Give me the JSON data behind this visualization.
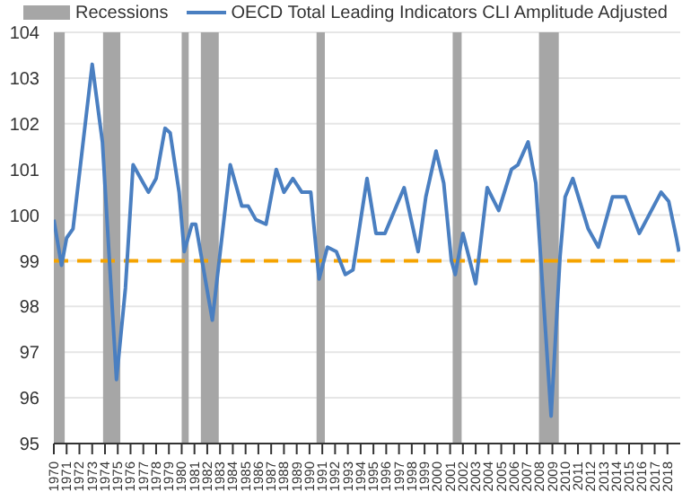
{
  "chart_data": {
    "type": "line",
    "legend": "top",
    "grid": "y",
    "marker": "none",
    "line_style": "solid",
    "xlim": [
      1970,
      2019
    ],
    "xticks": [
      1970,
      1971,
      1972,
      1973,
      1974,
      1975,
      1976,
      1977,
      1978,
      1979,
      1980,
      1981,
      1982,
      1983,
      1984,
      1985,
      1986,
      1987,
      1988,
      1989,
      1990,
      1991,
      1992,
      1993,
      1994,
      1995,
      1996,
      1997,
      1998,
      1999,
      2000,
      2001,
      2002,
      2003,
      2004,
      2005,
      2006,
      2007,
      2008,
      2009,
      2010,
      2011,
      2012,
      2013,
      2014,
      2015,
      2016,
      2017,
      2018
    ],
    "ylim": [
      95,
      104
    ],
    "yticks": [
      95,
      96,
      97,
      98,
      99,
      100,
      101,
      102,
      103,
      104
    ],
    "series": [
      {
        "name": "OECD Total Leading Indicators CLI Amplitude Adjusted",
        "color": "#4a7fc1",
        "x": [
          1970.0,
          1970.6,
          1971.0,
          1971.5,
          1973.0,
          1973.8,
          1974.9,
          1975.6,
          1976.2,
          1977.0,
          1977.4,
          1978.0,
          1978.7,
          1979.1,
          1979.8,
          1980.2,
          1980.8,
          1981.1,
          1982.4,
          1983.8,
          1984.7,
          1985.2,
          1985.8,
          1986.6,
          1987.4,
          1988.0,
          1988.7,
          1989.4,
          1990.1,
          1990.5,
          1990.75,
          1991.4,
          1992.1,
          1992.8,
          1993.4,
          1994.5,
          1995.2,
          1995.9,
          1997.4,
          1998.5,
          1999.1,
          1999.9,
          2000.5,
          2001.1,
          2001.4,
          2002.0,
          2003.0,
          2003.9,
          2004.8,
          2005.8,
          2006.3,
          2007.1,
          2007.7,
          2008.1,
          2008.9,
          2009.6,
          2010.0,
          2010.6,
          2011.8,
          2012.6,
          2013.7,
          2014.7,
          2015.8,
          2017.5,
          2018.1,
          2018.7,
          2018.9
        ],
        "values": [
          99.9,
          98.9,
          99.5,
          99.7,
          103.3,
          101.6,
          96.4,
          98.4,
          101.1,
          100.7,
          100.5,
          100.8,
          101.9,
          101.8,
          100.5,
          99.2,
          99.8,
          99.8,
          97.7,
          101.1,
          100.2,
          100.2,
          99.9,
          99.8,
          101.0,
          100.5,
          100.8,
          100.5,
          100.5,
          99.3,
          98.6,
          99.3,
          99.2,
          98.7,
          98.8,
          100.8,
          99.6,
          99.6,
          100.6,
          99.2,
          100.4,
          101.4,
          100.7,
          99.0,
          98.7,
          99.6,
          98.5,
          100.6,
          100.1,
          101.0,
          101.1,
          101.6,
          100.7,
          99.0,
          95.6,
          99.1,
          100.4,
          100.8,
          99.7,
          99.3,
          100.4,
          100.4,
          99.6,
          100.5,
          100.3,
          99.5,
          99.2
        ]
      }
    ],
    "bands": [
      {
        "axis": "x",
        "from": 1969.95,
        "to": 1970.85,
        "label": "Recessions",
        "color": "#a6a6a6"
      },
      {
        "axis": "x",
        "from": 1973.85,
        "to": 1975.2,
        "color": "#a6a6a6"
      },
      {
        "axis": "x",
        "from": 1980.0,
        "to": 1980.55,
        "color": "#a6a6a6"
      },
      {
        "axis": "x",
        "from": 1981.5,
        "to": 1982.9,
        "color": "#a6a6a6"
      },
      {
        "axis": "x",
        "from": 1990.55,
        "to": 1991.2,
        "color": "#a6a6a6"
      },
      {
        "axis": "x",
        "from": 2001.2,
        "to": 2001.9,
        "color": "#a6a6a6"
      },
      {
        "axis": "x",
        "from": 2007.95,
        "to": 2009.5,
        "color": "#a6a6a6"
      }
    ],
    "ref_lines": [
      {
        "axis": "y",
        "value": 99,
        "color": "#f5a300",
        "line_style": "dashed"
      }
    ]
  }
}
